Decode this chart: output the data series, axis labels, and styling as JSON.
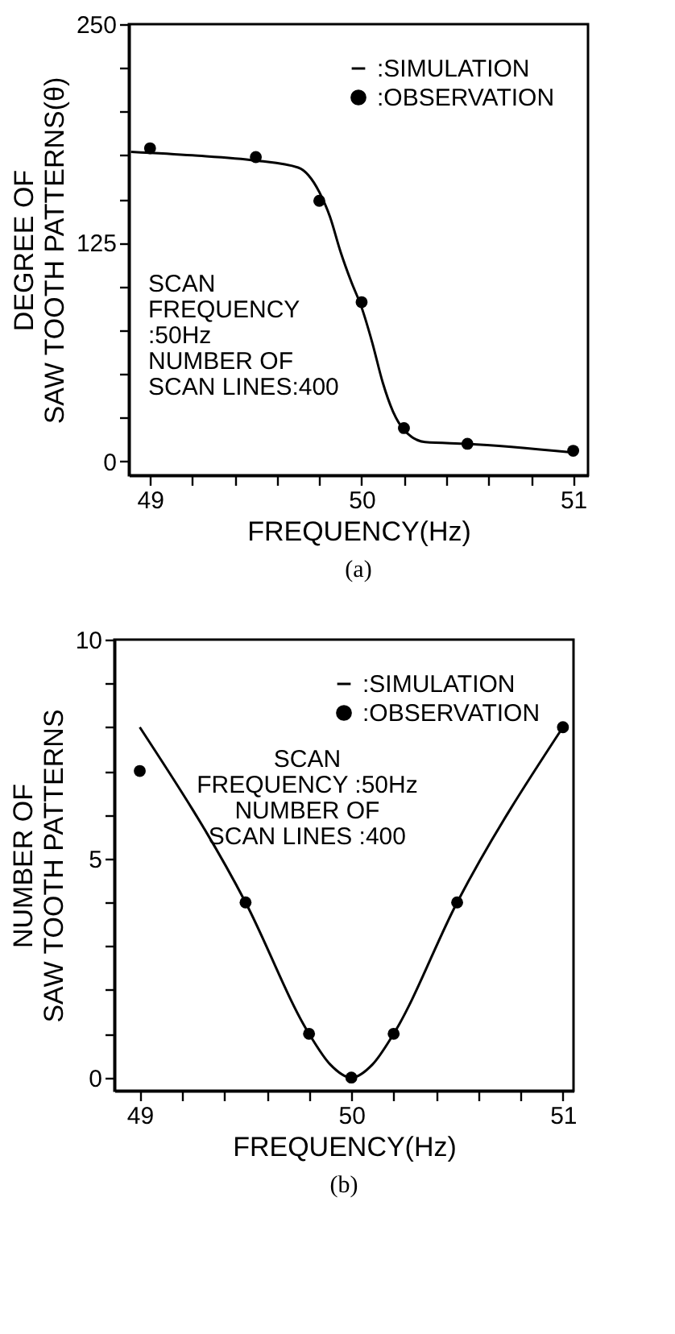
{
  "chart_data": [
    {
      "type": "line",
      "title": "(a)",
      "xlabel": "FREQUENCY(Hz)",
      "ylabel": "DEGREE OF\nSAW TOOTH PATTERNS(θ)",
      "annotations": [
        "SCAN\nFREQUENCY\n:50Hz\nNUMBER OF\nSCAN LINES:400"
      ],
      "xlim": [
        48.9,
        51.07
      ],
      "ylim": [
        -8,
        250
      ],
      "xticks": [
        49,
        {
          "value": 49.2,
          "label": null
        },
        {
          "value": 49.4,
          "label": null
        },
        {
          "value": 49.6,
          "label": null
        },
        {
          "value": 49.8,
          "label": null
        },
        50,
        {
          "value": 50.2,
          "label": null
        },
        {
          "value": 50.4,
          "label": null
        },
        {
          "value": 50.6,
          "label": null
        },
        {
          "value": 50.8,
          "label": null
        },
        51
      ],
      "yticks": [
        0,
        {
          "value": 25,
          "label": null
        },
        {
          "value": 50,
          "label": null
        },
        {
          "value": 75,
          "label": null
        },
        {
          "value": 100,
          "label": null
        },
        125,
        {
          "value": 150,
          "label": null
        },
        {
          "value": 175,
          "label": null
        },
        {
          "value": 200,
          "label": null
        },
        {
          "value": 225,
          "label": null
        },
        250
      ],
      "legend": "top right",
      "series": [
        {
          "name": ":SIMULATION",
          "type": "line",
          "color": "#000000",
          "marker": "none",
          "x": [
            48.91,
            49.2,
            49.5,
            49.7,
            49.8,
            49.85,
            49.9,
            49.95,
            50,
            50.05,
            50.1,
            50.15,
            50.2,
            50.3,
            50.5,
            51
          ],
          "values": [
            177,
            175,
            172,
            168,
            154,
            140,
            120,
            103,
            88,
            68,
            45,
            28,
            18,
            11,
            10,
            5
          ]
        },
        {
          "name": ":OBSERVATION",
          "type": "scatter",
          "color": "#000000",
          "marker": "circle",
          "x": [
            49,
            49.5,
            49.8,
            50,
            50.2,
            50.5,
            51
          ],
          "values": [
            179,
            174,
            149,
            91,
            19,
            10,
            6
          ]
        }
      ]
    },
    {
      "type": "line",
      "title": "(b)",
      "xlabel": "FREQUENCY(Hz)",
      "ylabel": "NUMBER OF\nSAW TOOTH PATTERNS",
      "annotations": [
        "SCAN\nFREQUENCY :50Hz\nNUMBER OF\nSCAN LINES :400"
      ],
      "xlim": [
        48.88,
        51.05
      ],
      "ylim": [
        -0.3,
        10
      ],
      "xticks": [
        49,
        {
          "value": 49.2,
          "label": null
        },
        {
          "value": 49.4,
          "label": null
        },
        {
          "value": 49.6,
          "label": null
        },
        {
          "value": 49.8,
          "label": null
        },
        50,
        {
          "value": 50.2,
          "label": null
        },
        {
          "value": 50.4,
          "label": null
        },
        {
          "value": 50.6,
          "label": null
        },
        {
          "value": 50.8,
          "label": null
        },
        51
      ],
      "yticks": [
        0,
        {
          "value": 1,
          "label": null
        },
        {
          "value": 2,
          "label": null
        },
        {
          "value": 3,
          "label": null
        },
        {
          "value": 4,
          "label": null
        },
        5,
        {
          "value": 6,
          "label": null
        },
        {
          "value": 7,
          "label": null
        },
        {
          "value": 8,
          "label": null
        },
        {
          "value": 9,
          "label": null
        },
        10
      ],
      "legend": "top right",
      "series": [
        {
          "name": ":SIMULATION",
          "type": "line",
          "color": "#000000",
          "marker": "none",
          "x": [
            49,
            49.5,
            49.8,
            49.9,
            50,
            50.1,
            50.2,
            50.5,
            51
          ],
          "values": [
            8,
            4,
            1,
            0.3,
            0,
            0.3,
            1,
            4,
            8
          ]
        },
        {
          "name": ":OBSERVATION",
          "type": "scatter",
          "color": "#000000",
          "marker": "circle",
          "x": [
            49,
            49.5,
            49.8,
            50,
            50.2,
            50.5,
            51
          ],
          "values": [
            7,
            4,
            1,
            0,
            1,
            4,
            8
          ]
        }
      ]
    }
  ]
}
